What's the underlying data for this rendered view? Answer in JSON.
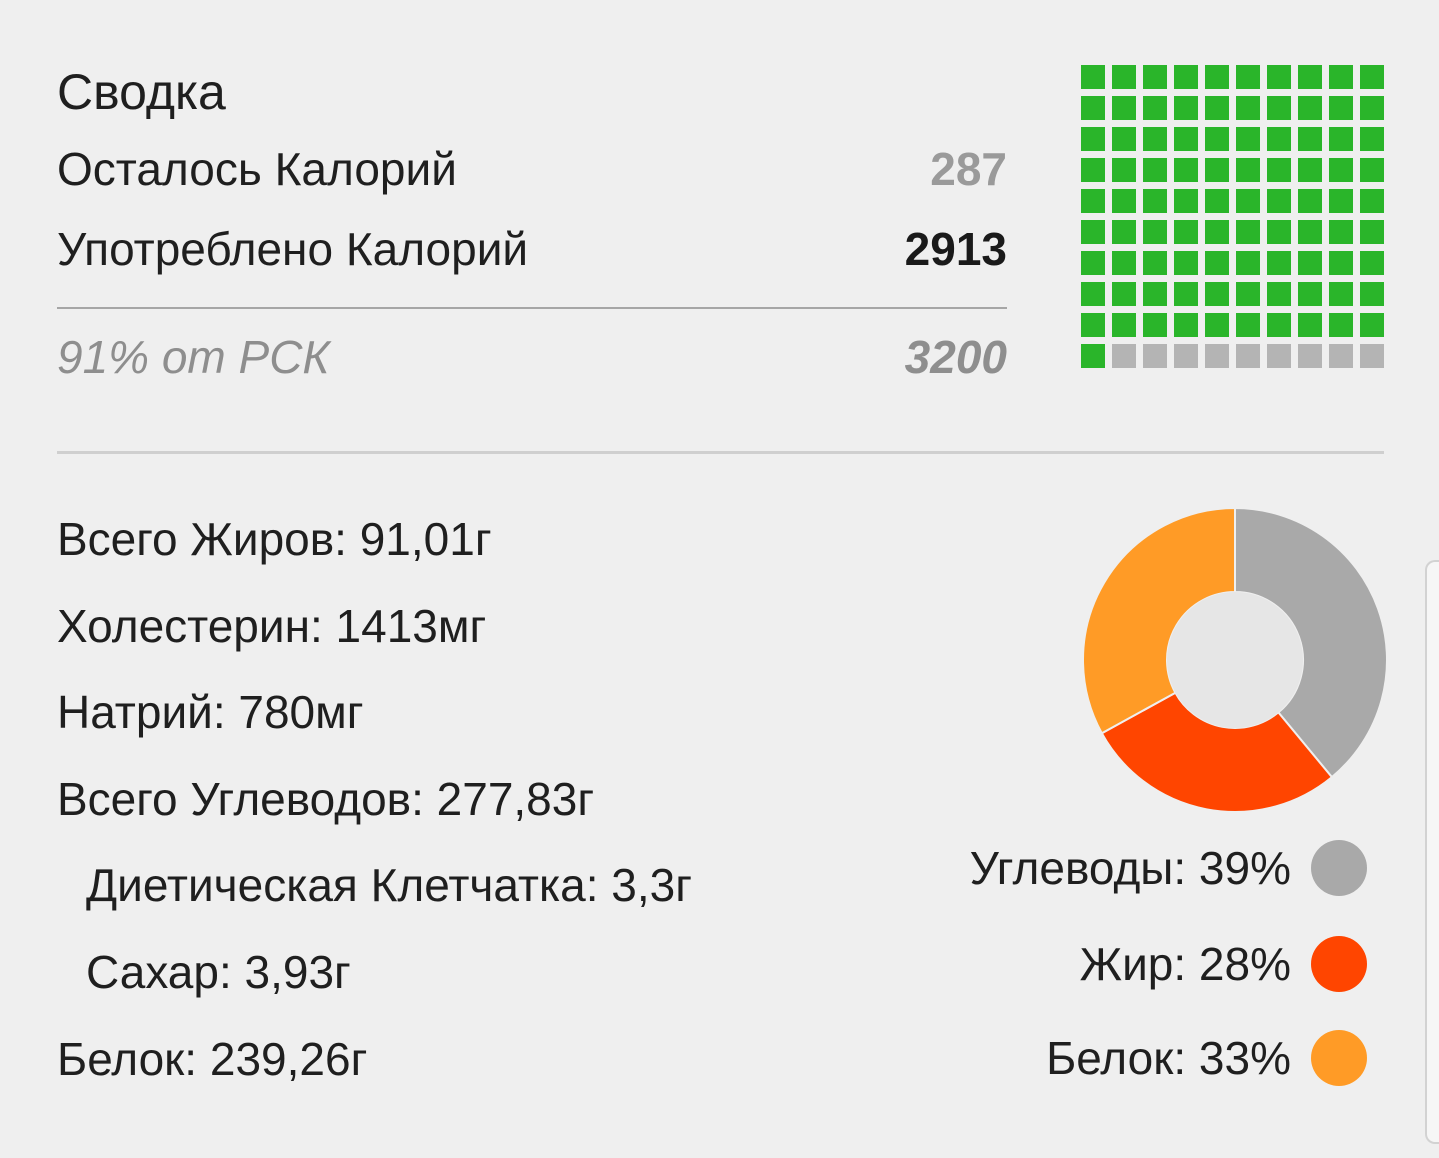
{
  "summary": {
    "title": "Сводка",
    "remaining_label": "Осталось Калорий",
    "remaining_value": "287",
    "consumed_label": "Употреблено Калорий",
    "consumed_value": "2913",
    "rdi_label": "91% от РСК",
    "rdi_value": "3200"
  },
  "calorie_grid": {
    "filled_fraction": 0.91,
    "filled_color": "#2ab52a",
    "empty_color": "#b4b4b4"
  },
  "nutrients": {
    "fat": "Всего Жиров: 91,01г",
    "cholesterol": "Холестерин: 1413мг",
    "sodium": "Натрий: 780мг",
    "carbs": "Всего Углеводов: 277,83г",
    "fiber": "Диетическая Клетчатка: 3,3г",
    "sugar": "Сахар: 3,93г",
    "protein": "Белок: 239,26г"
  },
  "chart_data": {
    "type": "pie",
    "categories": [
      "Углеводы",
      "Жир",
      "Белок"
    ],
    "values": [
      39,
      28,
      33
    ],
    "colors": [
      "#a9a9a9",
      "#ff4500",
      "#ff9b26"
    ],
    "legend_labels": [
      "Углеводы: 39%",
      "Жир: 28%",
      "Белок: 33%"
    ],
    "legend": "below-right"
  }
}
